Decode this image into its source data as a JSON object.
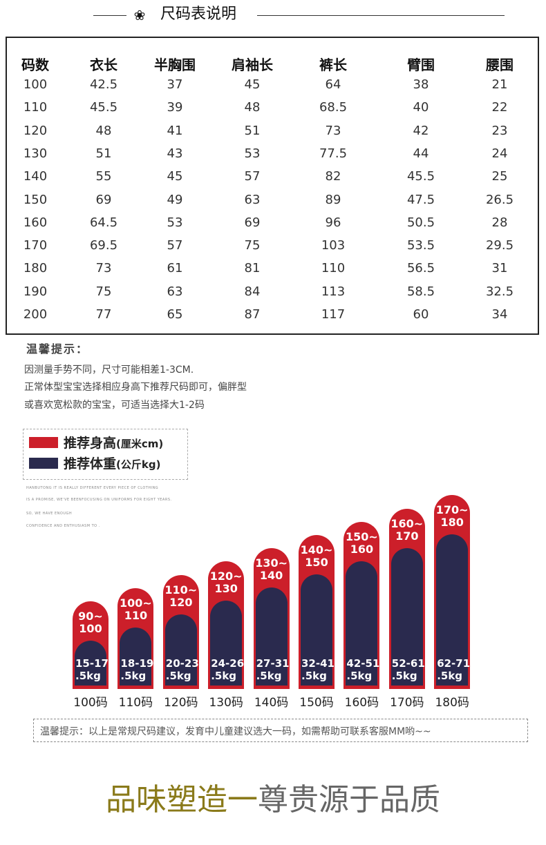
{
  "header": {
    "badge_icon": "flower-icon",
    "badge_glyph": "❀",
    "title": "尺码表说明"
  },
  "size_table": {
    "headers": [
      "码数",
      "衣长",
      "半胸围",
      "肩袖长",
      "裤长",
      "臂围",
      "腰围"
    ],
    "rows": [
      [
        "100",
        "42.5",
        "37",
        "45",
        "64",
        "38",
        "21"
      ],
      [
        "110",
        "45.5",
        "39",
        "48",
        "68.5",
        "40",
        "22"
      ],
      [
        "120",
        "48",
        "41",
        "51",
        "73",
        "42",
        "23"
      ],
      [
        "130",
        "51",
        "43",
        "53",
        "77.5",
        "44",
        "24"
      ],
      [
        "140",
        "55",
        "45",
        "57",
        "82",
        "45.5",
        "25"
      ],
      [
        "150",
        "69",
        "49",
        "63",
        "89",
        "47.5",
        "26.5"
      ],
      [
        "160",
        "64.5",
        "53",
        "69",
        "96",
        "50.5",
        "28"
      ],
      [
        "170",
        "69.5",
        "57",
        "75",
        "103",
        "53.5",
        "29.5"
      ],
      [
        "180",
        "73",
        "61",
        "81",
        "110",
        "56.5",
        "31"
      ],
      [
        "190",
        "75",
        "63",
        "84",
        "113",
        "58.5",
        "32.5"
      ],
      [
        "200",
        "77",
        "65",
        "87",
        "117",
        "60",
        "34"
      ]
    ]
  },
  "tip": {
    "title": "温馨提示：",
    "lines": [
      "因测量手势不同，尺寸可能相差1-3CM.",
      "正常体型宝宝选择相应身高下推荐尺码即可，偏胖型",
      "或喜欢宽松款的宝宝，可适当选择大1-2码"
    ]
  },
  "legend": {
    "height_label": "推荐身高",
    "height_unit": "(厘米cm)",
    "height_color": "#cc1f2a",
    "weight_label": "推荐体重",
    "weight_unit": "(公斤kg)",
    "weight_color": "#2a2a4e",
    "english": [
      "HANBUTONG IT IS REALLY DIFFERENT EVERY PIECE OF CLOTHING",
      "IS A PROMISE, WE'VE BEENFOCUSING ON UNIFORMS FOR EIGHT YEARS.",
      "SO, WE HAVE ENOUGH",
      "CONFIDENCE AND ENTHUSIASM TO ."
    ]
  },
  "chart_data": {
    "type": "bar",
    "categories": [
      "100码",
      "110码",
      "120码",
      "130码",
      "140码",
      "150码",
      "160码",
      "170码",
      "180码"
    ],
    "series": [
      {
        "name": "推荐身高(厘米cm)",
        "values": [
          "90~100",
          "100~110",
          "110~120",
          "120~130",
          "130~140",
          "140~150",
          "150~160",
          "160~170",
          "170~180"
        ]
      },
      {
        "name": "推荐体重(公斤kg)",
        "values": [
          "15-17.5kg",
          "18-19.5kg",
          "20-23.5kg",
          "24-26.5kg",
          "27-31.5kg",
          "32-41.5kg",
          "42-51.5kg",
          "52-61.5kg",
          "62-71.5kg"
        ]
      }
    ],
    "bars": [
      {
        "size": "100码",
        "height_line1": "90~",
        "height_line2": "100",
        "weight_line1": "15-17",
        "weight_line2": ".5kg"
      },
      {
        "size": "110码",
        "height_line1": "100~",
        "height_line2": "110",
        "weight_line1": "18-19",
        "weight_line2": ".5kg"
      },
      {
        "size": "120码",
        "height_line1": "110~",
        "height_line2": "120",
        "weight_line1": "20-23",
        "weight_line2": ".5kg"
      },
      {
        "size": "130码",
        "height_line1": "120~",
        "height_line2": "130",
        "weight_line1": "24-26",
        "weight_line2": ".5kg"
      },
      {
        "size": "140码",
        "height_line1": "130~",
        "height_line2": "140",
        "weight_line1": "27-31",
        "weight_line2": ".5kg"
      },
      {
        "size": "150码",
        "height_line1": "140~",
        "height_line2": "150",
        "weight_line1": "32-41",
        "weight_line2": ".5kg"
      },
      {
        "size": "160码",
        "height_line1": "150~",
        "height_line2": "160",
        "weight_line1": "42-51",
        "weight_line2": ".5kg"
      },
      {
        "size": "170码",
        "height_line1": "160~",
        "height_line2": "170",
        "weight_line1": "52-61",
        "weight_line2": ".5kg"
      },
      {
        "size": "180码",
        "height_line1": "170~",
        "height_line2": "180",
        "weight_line1": "62-71",
        "weight_line2": ".5kg"
      }
    ]
  },
  "tip2": {
    "text": "温馨提示：以上是常规尺码建议，发育中儿童建议选大一码，如需帮助可联系客服MM哟~~"
  },
  "slogan": {
    "part1": "品味塑造一",
    "part2": "尊贵源于品质",
    "color1": "#8a7a1a",
    "color2": "#666666"
  }
}
